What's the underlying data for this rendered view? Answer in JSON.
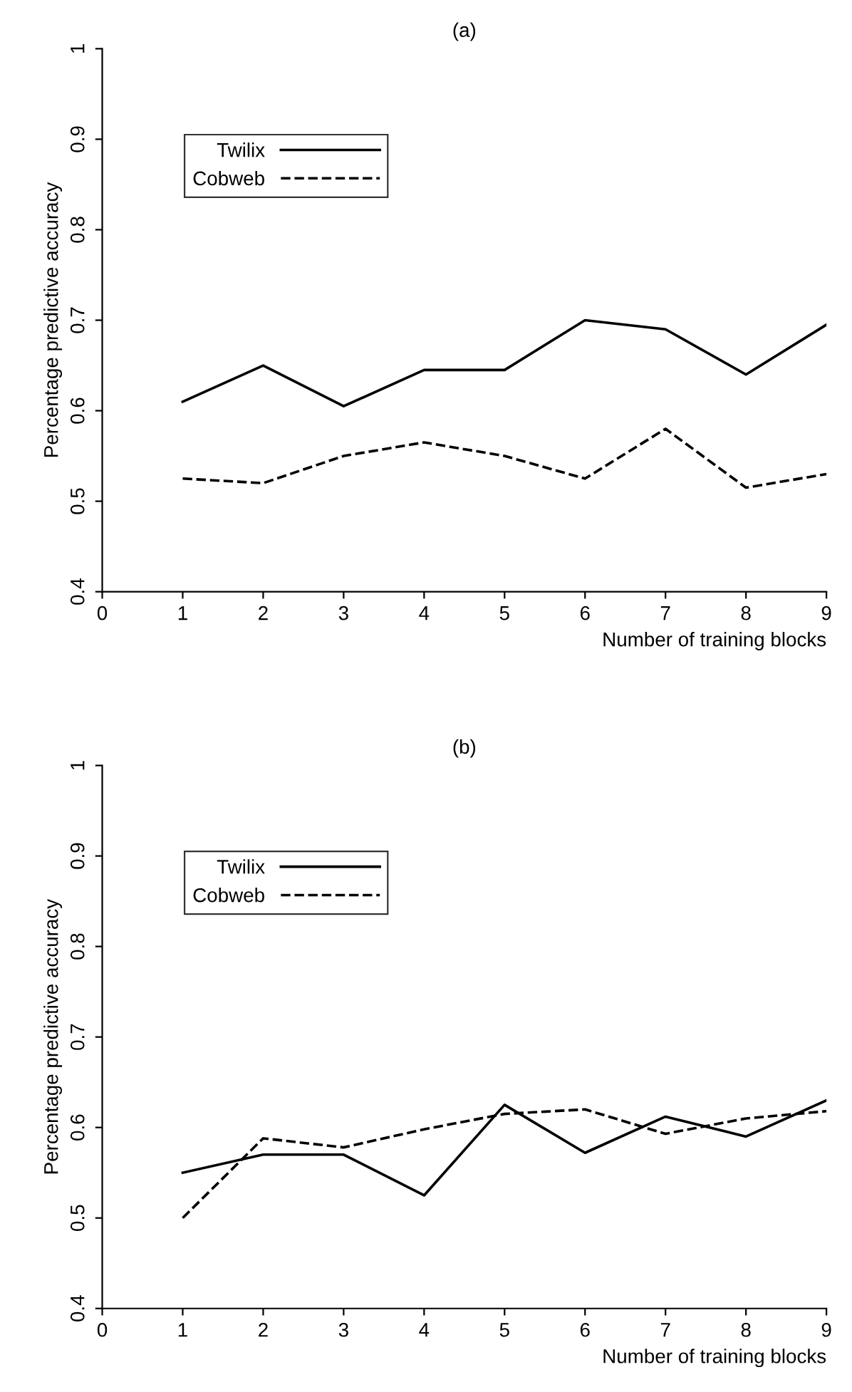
{
  "chart_data": [
    {
      "type": "line",
      "title": "(a)",
      "xlabel": "Number of training blocks",
      "ylabel": "Percentage predictive accuracy",
      "x": [
        1,
        2,
        3,
        4,
        5,
        6,
        7,
        8,
        9
      ],
      "xlim": [
        0,
        9
      ],
      "xticks": [
        0,
        1,
        2,
        3,
        4,
        5,
        6,
        7,
        8,
        9
      ],
      "ylim": [
        0.4,
        1
      ],
      "yticks": [
        0.4,
        0.5,
        0.6,
        0.7,
        0.8,
        0.9,
        1
      ],
      "grid": false,
      "legend": "top left",
      "marker": "none",
      "series": [
        {
          "name": "Twilix",
          "color": "#000000",
          "line_style": "solid",
          "values": [
            0.61,
            0.65,
            0.605,
            0.645,
            0.645,
            0.7,
            0.69,
            0.64,
            0.695
          ]
        },
        {
          "name": "Cobweb",
          "color": "#000000",
          "line_style": "dashed",
          "values": [
            0.525,
            0.52,
            0.55,
            0.565,
            0.55,
            0.525,
            0.58,
            0.515,
            0.53
          ]
        }
      ]
    },
    {
      "type": "line",
      "title": "(b)",
      "xlabel": "Number of training blocks",
      "ylabel": "Percentage predictive accuracy",
      "x": [
        1,
        2,
        3,
        4,
        5,
        6,
        7,
        8,
        9
      ],
      "xlim": [
        0,
        9
      ],
      "xticks": [
        0,
        1,
        2,
        3,
        4,
        5,
        6,
        7,
        8,
        9
      ],
      "ylim": [
        0.4,
        1
      ],
      "yticks": [
        0.4,
        0.5,
        0.6,
        0.7,
        0.8,
        0.9,
        1
      ],
      "grid": false,
      "legend": "top left",
      "marker": "none",
      "series": [
        {
          "name": "Twilix",
          "color": "#000000",
          "line_style": "solid",
          "values": [
            0.55,
            0.57,
            0.57,
            0.525,
            0.625,
            0.572,
            0.612,
            0.59,
            0.63
          ]
        },
        {
          "name": "Cobweb",
          "color": "#000000",
          "line_style": "dashed",
          "values": [
            0.5,
            0.588,
            0.578,
            0.598,
            0.615,
            0.62,
            0.593,
            0.61,
            0.618
          ]
        }
      ]
    }
  ]
}
